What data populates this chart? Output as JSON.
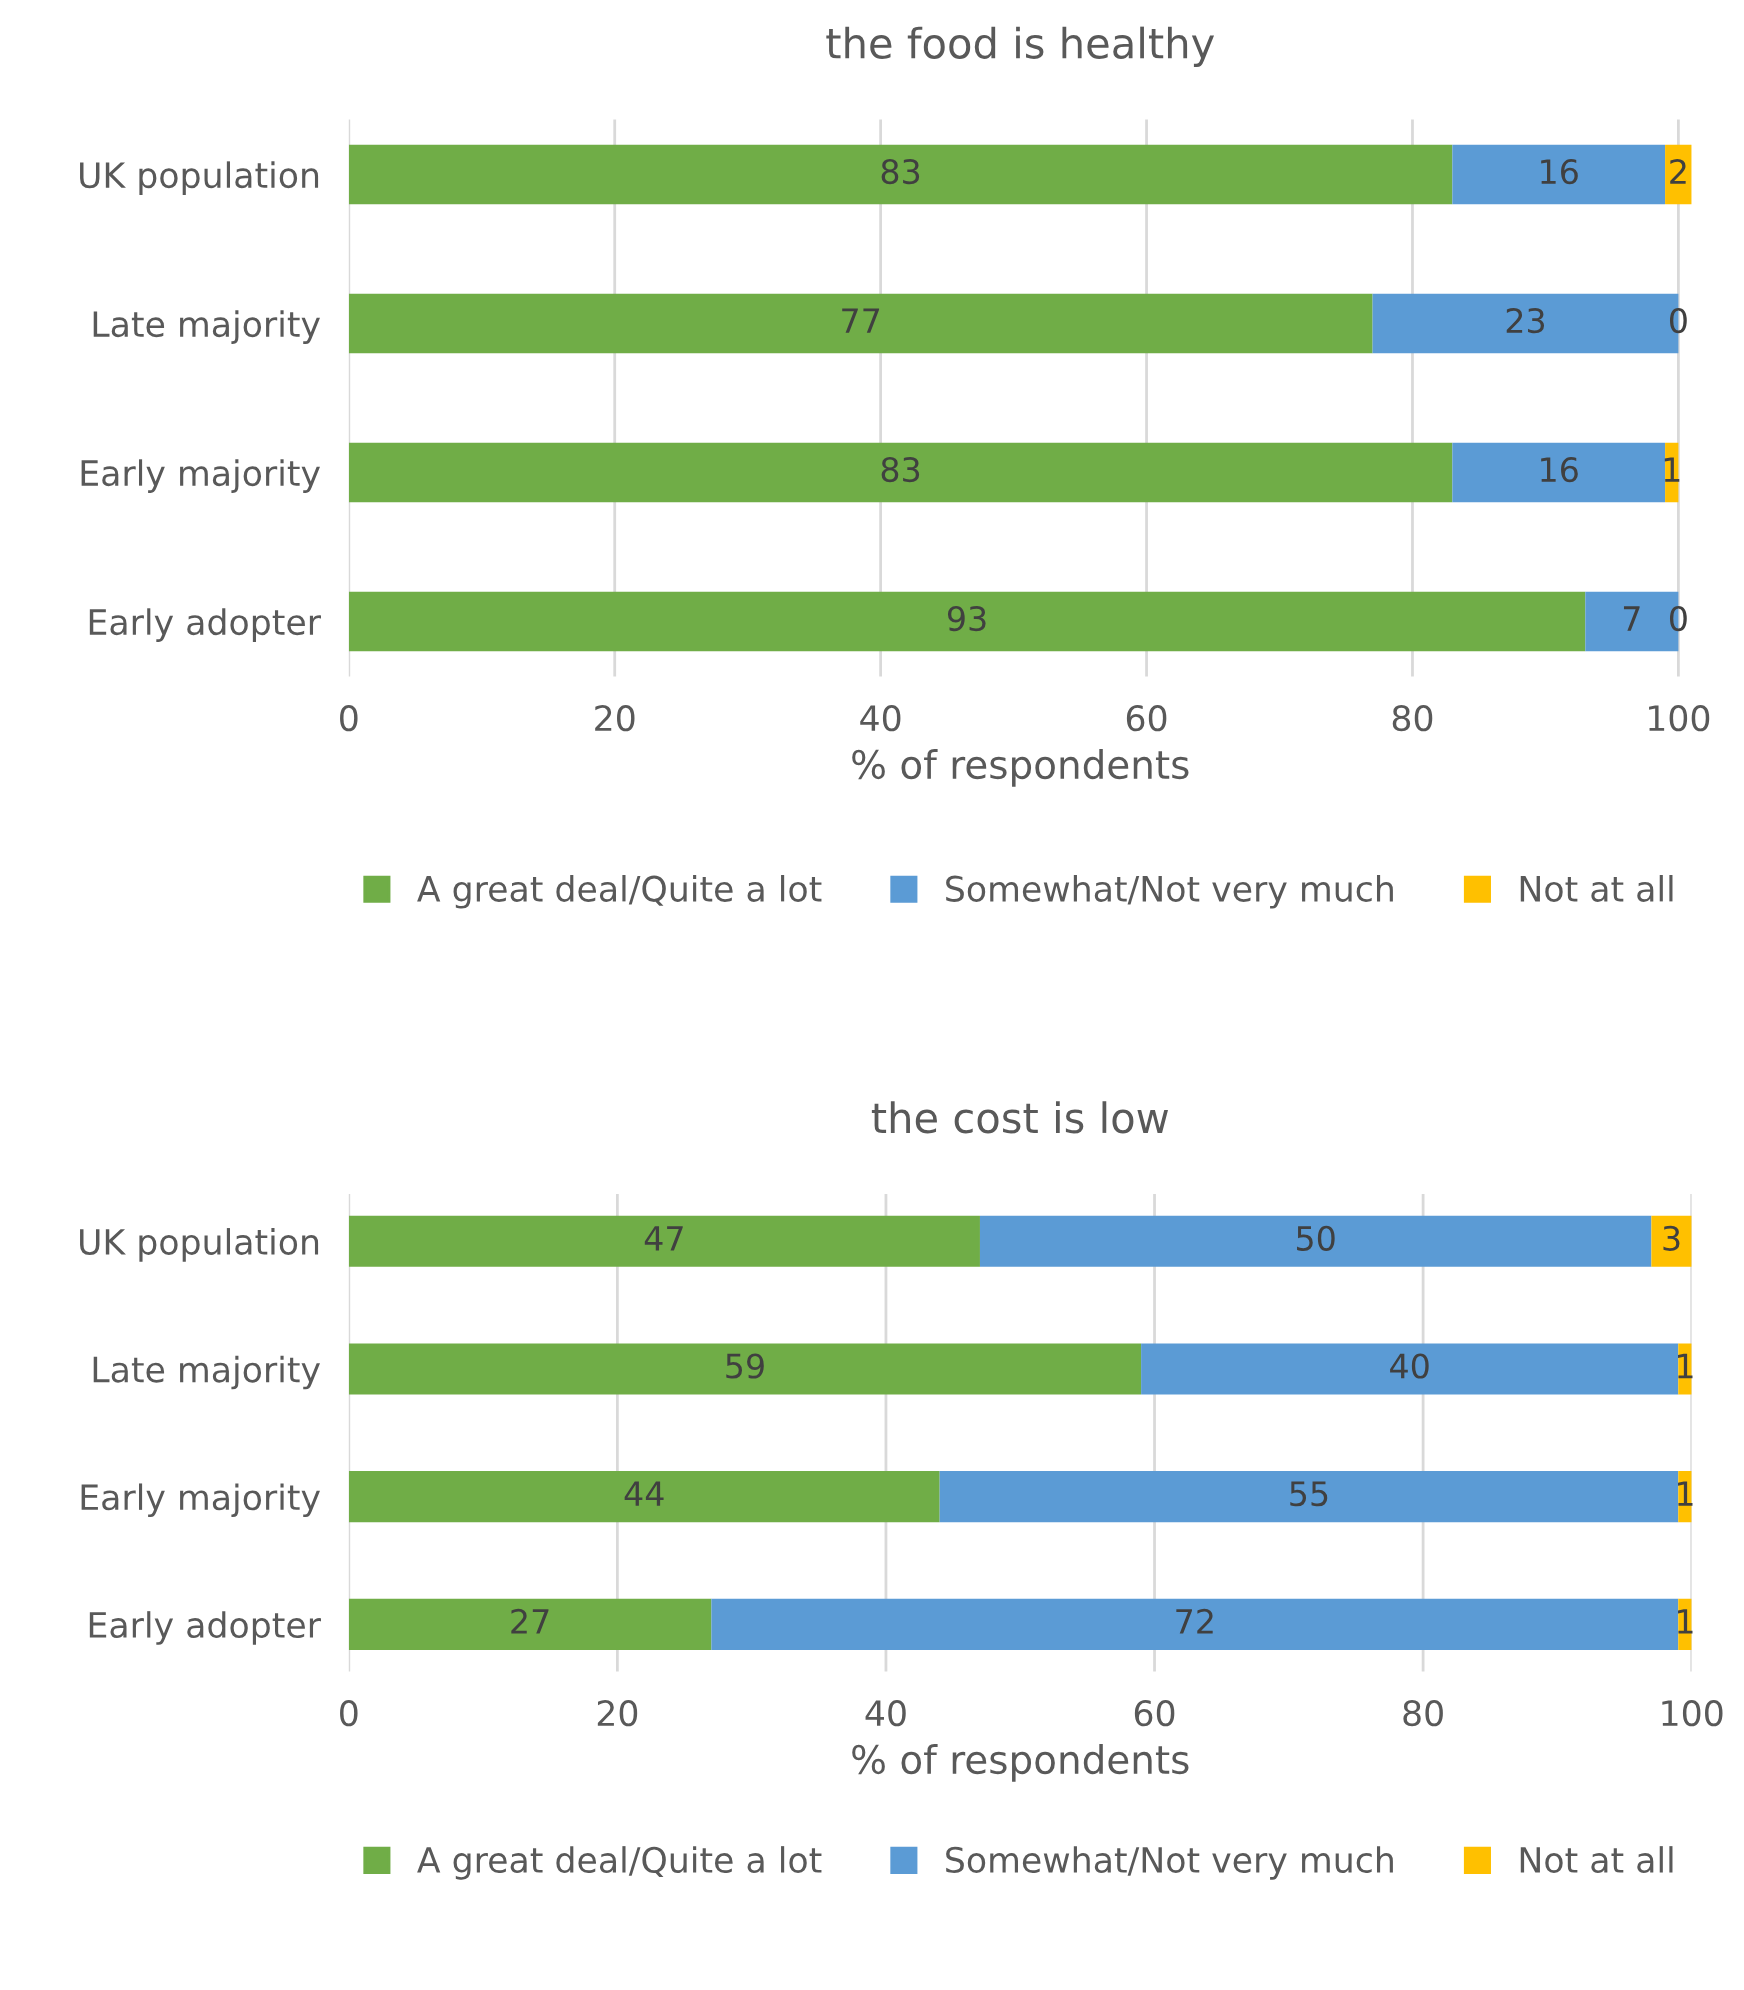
{
  "chart_data": [
    {
      "type": "bar",
      "orientation": "horizontal",
      "stacked": true,
      "title": "the food is healthy",
      "xlabel": "% of respondents",
      "categories": [
        "UK population",
        "Late majority",
        "Early majority",
        "Early adopter"
      ],
      "series": [
        {
          "name": "A great deal/Quite a lot",
          "color": "#70ad47",
          "values": [
            83,
            77,
            83,
            93
          ]
        },
        {
          "name": "Somewhat/Not very much",
          "color": "#5b9bd5",
          "values": [
            16,
            23,
            16,
            7
          ]
        },
        {
          "name": "Not at all",
          "color": "#ffc000",
          "values": [
            2,
            0,
            1,
            0
          ]
        }
      ],
      "xlim": [
        0,
        101
      ],
      "xticks": [
        0,
        20,
        40,
        60,
        80,
        100
      ],
      "grid": "x",
      "legend": "bottom",
      "data_labels": true
    },
    {
      "type": "bar",
      "orientation": "horizontal",
      "stacked": true,
      "title": "the cost is low",
      "xlabel": "% of respondents",
      "categories": [
        "UK population",
        "Late majority",
        "Early majority",
        "Early adopter"
      ],
      "series": [
        {
          "name": "A great deal/Quite a lot",
          "color": "#70ad47",
          "values": [
            47,
            59,
            44,
            27
          ]
        },
        {
          "name": "Somewhat/Not very much",
          "color": "#5b9bd5",
          "values": [
            50,
            40,
            55,
            72
          ]
        },
        {
          "name": "Not at all",
          "color": "#ffc000",
          "values": [
            3,
            1,
            1,
            1
          ]
        }
      ],
      "xlim": [
        0,
        100
      ],
      "xticks": [
        0,
        20,
        40,
        60,
        80,
        100
      ],
      "grid": "x",
      "legend": "bottom",
      "data_labels": true
    }
  ]
}
